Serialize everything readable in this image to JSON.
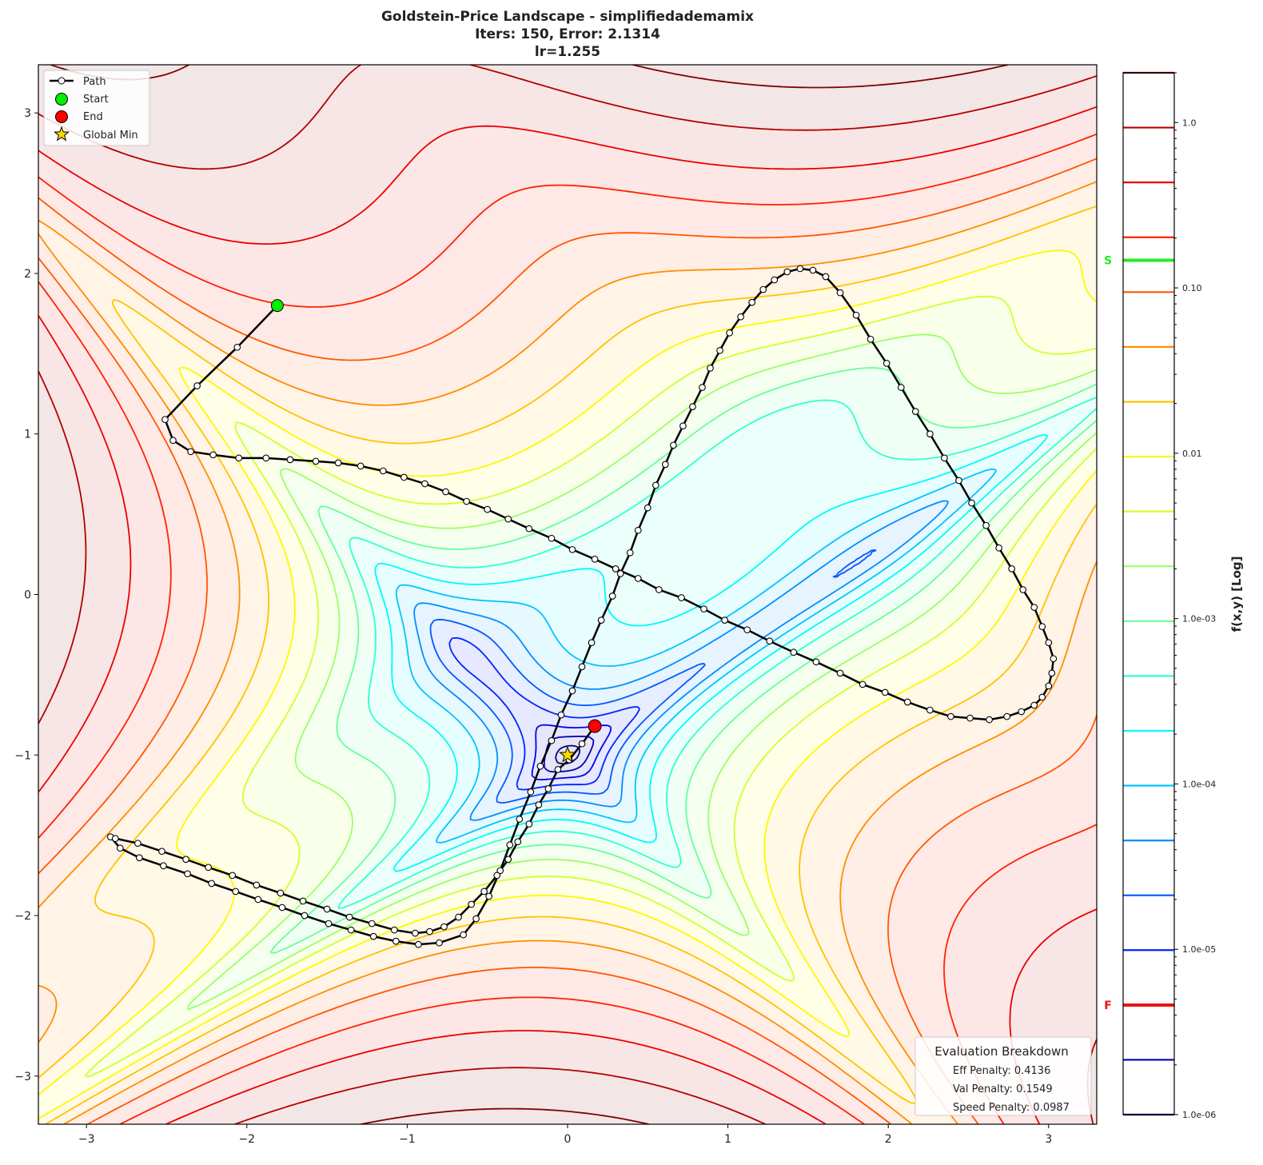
{
  "chart_data": {
    "type": "contour",
    "title_lines": [
      "Goldstein-Price Landscape - simplifiedademamix",
      "Iters: 150, Error: 2.1314",
      "lr=1.255"
    ],
    "xlim": [
      -3.3,
      3.3
    ],
    "ylim": [
      -3.3,
      3.3
    ],
    "xticks": [
      -3,
      -2,
      -1,
      0,
      1,
      2,
      3
    ],
    "yticks": [
      -3,
      -2,
      -1,
      0,
      1,
      2,
      3
    ],
    "xtick_labels": [
      "−3",
      "−2",
      "−1",
      "0",
      "1",
      "2",
      "3"
    ],
    "ytick_labels": [
      "−3",
      "−2",
      "−1",
      "0",
      "1",
      "2",
      "3"
    ],
    "grid": false,
    "colormap": "jet",
    "colorbar": {
      "label": "f(x,y) [Log]",
      "scale": "log",
      "range": [
        1e-06,
        2.0
      ],
      "level_count": 20,
      "tick_values": [
        1.0,
        0.1,
        0.01,
        0.001,
        0.0001,
        1e-05,
        1e-06
      ],
      "tick_labels": [
        "1.0",
        "0.10",
        "0.01",
        "1.0e-03",
        "1.0e-04",
        "1.0e-05",
        "1.0e-06"
      ],
      "markers": [
        {
          "label": "S",
          "value": 0.147,
          "color": "#22ee22"
        },
        {
          "label": "F",
          "value": 4.6e-06,
          "color": "#ee1111"
        }
      ]
    },
    "legend": {
      "placement": "top-left",
      "entries": [
        "Path",
        "Start",
        "End",
        "Global Min"
      ]
    },
    "start": [
      -1.81,
      1.8
    ],
    "end": [
      0.17,
      -0.82
    ],
    "global_min": [
      0,
      -1
    ],
    "path": [
      [
        -1.81,
        1.8
      ],
      [
        -2.06,
        1.54
      ],
      [
        -2.31,
        1.3
      ],
      [
        -2.51,
        1.09
      ],
      [
        -2.46,
        0.96
      ],
      [
        -2.35,
        0.89
      ],
      [
        -2.21,
        0.87
      ],
      [
        -2.05,
        0.85
      ],
      [
        -1.88,
        0.85
      ],
      [
        -1.73,
        0.84
      ],
      [
        -1.57,
        0.83
      ],
      [
        -1.43,
        0.82
      ],
      [
        -1.29,
        0.8
      ],
      [
        -1.15,
        0.77
      ],
      [
        -1.02,
        0.73
      ],
      [
        -0.89,
        0.69
      ],
      [
        -0.76,
        0.64
      ],
      [
        -0.63,
        0.58
      ],
      [
        -0.5,
        0.53
      ],
      [
        -0.37,
        0.47
      ],
      [
        -0.24,
        0.41
      ],
      [
        -0.1,
        0.35
      ],
      [
        0.03,
        0.28
      ],
      [
        0.17,
        0.22
      ],
      [
        0.3,
        0.16
      ],
      [
        0.44,
        0.1
      ],
      [
        0.57,
        0.03
      ],
      [
        0.71,
        -0.02
      ],
      [
        0.85,
        -0.09
      ],
      [
        0.98,
        -0.16
      ],
      [
        1.12,
        -0.22
      ],
      [
        1.26,
        -0.29
      ],
      [
        1.41,
        -0.36
      ],
      [
        1.55,
        -0.42
      ],
      [
        1.7,
        -0.49
      ],
      [
        1.84,
        -0.56
      ],
      [
        1.98,
        -0.61
      ],
      [
        2.12,
        -0.67
      ],
      [
        2.26,
        -0.72
      ],
      [
        2.39,
        -0.76
      ],
      [
        2.51,
        -0.77
      ],
      [
        2.63,
        -0.78
      ],
      [
        2.74,
        -0.76
      ],
      [
        2.83,
        -0.73
      ],
      [
        2.91,
        -0.69
      ],
      [
        2.96,
        -0.64
      ],
      [
        3.0,
        -0.57
      ],
      [
        3.02,
        -0.49
      ],
      [
        3.03,
        -0.4
      ],
      [
        3.0,
        -0.3
      ],
      [
        2.96,
        -0.2
      ],
      [
        2.91,
        -0.08
      ],
      [
        2.84,
        0.03
      ],
      [
        2.77,
        0.16
      ],
      [
        2.69,
        0.29
      ],
      [
        2.61,
        0.43
      ],
      [
        2.52,
        0.57
      ],
      [
        2.44,
        0.71
      ],
      [
        2.35,
        0.85
      ],
      [
        2.26,
        1.0
      ],
      [
        2.17,
        1.14
      ],
      [
        2.08,
        1.29
      ],
      [
        1.99,
        1.44
      ],
      [
        1.89,
        1.59
      ],
      [
        1.8,
        1.74
      ],
      [
        1.7,
        1.88
      ],
      [
        1.61,
        1.98
      ],
      [
        1.53,
        2.02
      ],
      [
        1.45,
        2.03
      ],
      [
        1.37,
        2.01
      ],
      [
        1.29,
        1.96
      ],
      [
        1.22,
        1.9
      ],
      [
        1.15,
        1.82
      ],
      [
        1.08,
        1.73
      ],
      [
        1.01,
        1.63
      ],
      [
        0.95,
        1.52
      ],
      [
        0.89,
        1.41
      ],
      [
        0.84,
        1.29
      ],
      [
        0.78,
        1.17
      ],
      [
        0.72,
        1.05
      ],
      [
        0.66,
        0.93
      ],
      [
        0.61,
        0.81
      ],
      [
        0.55,
        0.68
      ],
      [
        0.5,
        0.54
      ],
      [
        0.44,
        0.4
      ],
      [
        0.39,
        0.26
      ],
      [
        0.33,
        0.13
      ],
      [
        0.28,
        -0.01
      ],
      [
        0.21,
        -0.16
      ],
      [
        0.15,
        -0.3
      ],
      [
        0.09,
        -0.45
      ],
      [
        0.03,
        -0.6
      ],
      [
        -0.04,
        -0.75
      ],
      [
        -0.1,
        -0.91
      ],
      [
        -0.17,
        -1.07
      ],
      [
        -0.23,
        -1.23
      ],
      [
        -0.3,
        -1.4
      ],
      [
        -0.36,
        -1.56
      ],
      [
        -0.42,
        -1.72
      ],
      [
        -0.49,
        -1.88
      ],
      [
        -0.57,
        -2.02
      ],
      [
        -0.65,
        -2.12
      ],
      [
        -0.8,
        -2.17
      ],
      [
        -0.93,
        -2.18
      ],
      [
        -1.07,
        -2.16
      ],
      [
        -1.21,
        -2.13
      ],
      [
        -1.35,
        -2.09
      ],
      [
        -1.49,
        -2.05
      ],
      [
        -1.64,
        -2.0
      ],
      [
        -1.78,
        -1.95
      ],
      [
        -1.93,
        -1.9
      ],
      [
        -2.07,
        -1.85
      ],
      [
        -2.22,
        -1.8
      ],
      [
        -2.37,
        -1.74
      ],
      [
        -2.52,
        -1.69
      ],
      [
        -2.67,
        -1.64
      ],
      [
        -2.79,
        -1.58
      ],
      [
        -2.85,
        -1.51
      ],
      [
        -2.82,
        -1.52
      ],
      [
        -2.68,
        -1.55
      ],
      [
        -2.53,
        -1.6
      ],
      [
        -2.38,
        -1.65
      ],
      [
        -2.24,
        -1.7
      ],
      [
        -2.09,
        -1.75
      ],
      [
        -1.94,
        -1.81
      ],
      [
        -1.79,
        -1.86
      ],
      [
        -1.65,
        -1.91
      ],
      [
        -1.5,
        -1.96
      ],
      [
        -1.36,
        -2.01
      ],
      [
        -1.22,
        -2.05
      ],
      [
        -1.08,
        -2.09
      ],
      [
        -0.95,
        -2.11
      ],
      [
        -0.86,
        -2.1
      ],
      [
        -0.77,
        -2.07
      ],
      [
        -0.68,
        -2.01
      ],
      [
        -0.6,
        -1.93
      ],
      [
        -0.52,
        -1.85
      ],
      [
        -0.44,
        -1.75
      ],
      [
        -0.37,
        -1.65
      ],
      [
        -0.31,
        -1.54
      ],
      [
        -0.24,
        -1.43
      ],
      [
        -0.18,
        -1.31
      ],
      [
        -0.12,
        -1.21
      ],
      [
        -0.06,
        -1.09
      ],
      [
        0.01,
        -1.03
      ],
      [
        0.09,
        -0.93
      ],
      [
        0.17,
        -0.82
      ]
    ]
  },
  "evaluation": {
    "title": "Evaluation Breakdown",
    "lines": [
      "Eff Penalty: 0.4136",
      "Val Penalty: 0.1549",
      "Speed Penalty: 0.0987"
    ]
  },
  "colors": {
    "start": "#00ee00",
    "end": "#ff0000",
    "global_min": "#ffd700",
    "path": "#000000"
  }
}
